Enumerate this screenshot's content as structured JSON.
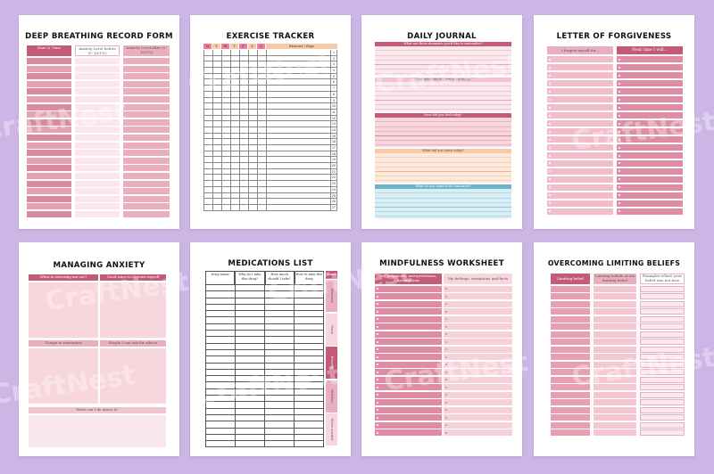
{
  "watermark": "CraftNest",
  "colors": {
    "background": "#cdb6e6",
    "pink_dark": "#c45a78",
    "pink_mid": "#eaaebe",
    "pink_light": "#f7d6de",
    "peach": "#f7c9a5",
    "teal": "#6ab6c8"
  },
  "pages": {
    "breathing": {
      "title": "DEEP BREATHING RECORD FORM",
      "headers": [
        "Date & Time",
        "Anxiety Level before (0- 10/1%)",
        "Anxiety Level after (0- 10/1%)"
      ]
    },
    "exercise": {
      "title": "EXERCISE TRACKER",
      "days": [
        "M",
        "T",
        "W",
        "T",
        "F",
        "S",
        "S"
      ],
      "header": "Exercise / Reps",
      "numbers": [
        "1",
        "2",
        "3",
        "4",
        "5",
        "6",
        "7",
        "8",
        "9",
        "10",
        "11",
        "12",
        "13",
        "14",
        "15",
        "16",
        "17",
        "18",
        "19",
        "20",
        "21",
        "22",
        "23",
        "24",
        "25",
        "26",
        "27"
      ]
    },
    "journal": {
      "title": "DAILY JOURNAL",
      "prompts": [
        "What are three moments you'd like to remember?",
        "What activities did you enjoy today?",
        "How did you feel today?",
        "What did you learn today?",
        "What do you want to do tomorrow?"
      ]
    },
    "forgiveness": {
      "title": "LETTER OF FORGIVENESS",
      "headers": [
        "I forgive myself for...",
        "Next time I will..."
      ]
    },
    "anxiety": {
      "title": "MANAGING ANXIETY",
      "headers": [
        "What is stressing me out?",
        "Good ways to distract myself",
        "Things to remember",
        "People I can ask for advice",
        "What can I do about it?"
      ]
    },
    "medications": {
      "title": "MEDICATIONS LIST",
      "headers": [
        "Drug name",
        "Why do I take this drug?",
        "How much should I take?",
        "How to take this drug"
      ],
      "times_header": "Times",
      "times": [
        "Morning",
        "Noon",
        "Evening",
        "Bedtime",
        "When needed"
      ]
    },
    "mindfulness": {
      "title": "MINDFULNESS WORKSHEET",
      "headers": [
        "My judgments, interpretations, assumptions",
        "My feelings, sensations and facts"
      ]
    },
    "beliefs": {
      "title": "OVERCOMING LIMITING BELIEFS",
      "headers": [
        "Limiting belief",
        "Limiting beliefs of the limiting belief",
        "Examples where your belief was not true"
      ]
    }
  }
}
